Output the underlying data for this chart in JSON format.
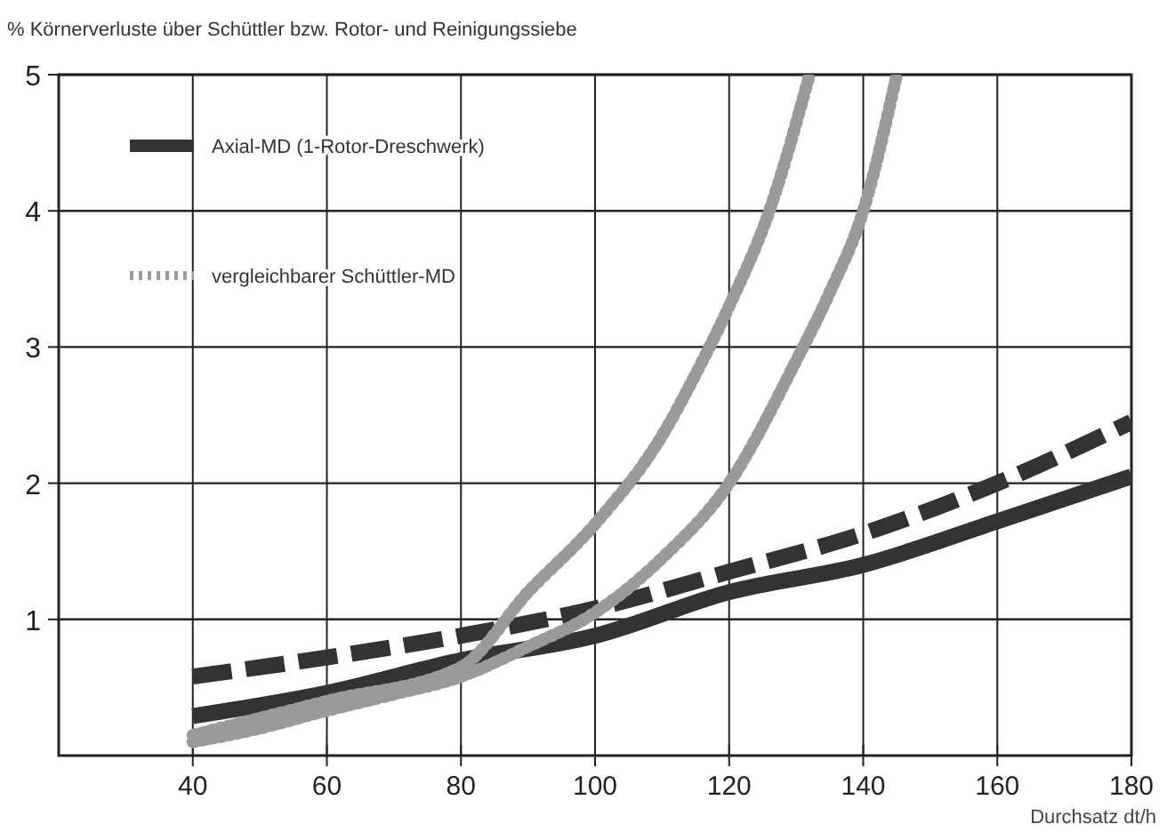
{
  "chart_data": {
    "type": "line",
    "ylabel": "% Körnerverluste über Schüttler bzw. Rotor- und Reinigungssiebe",
    "xlabel": "Durchsatz dt/h",
    "xlim": [
      20,
      180
    ],
    "xticks": [
      40,
      60,
      80,
      100,
      120,
      140,
      160,
      180
    ],
    "ylim": [
      0,
      5
    ],
    "yticks": [
      1,
      2,
      3,
      4,
      5
    ],
    "grid": true,
    "legend": "top left",
    "series": [
      {
        "name": "Axial-MD (1-Rotor-Dreschwerk)",
        "color": "#333333",
        "line_style": "solid",
        "x": [
          40,
          60,
          80,
          100,
          120,
          140,
          160,
          180
        ],
        "values": [
          0.29,
          0.46,
          0.7,
          0.88,
          1.2,
          1.4,
          1.72,
          2.05
        ]
      },
      {
        "color": "#333333",
        "line_style": "dashed",
        "x": [
          40,
          60,
          80,
          100,
          120,
          140,
          160,
          180
        ],
        "values": [
          0.58,
          0.72,
          0.88,
          1.08,
          1.35,
          1.63,
          2.0,
          2.45
        ]
      },
      {
        "name": "vergleichbarer Schüttler-MD",
        "color": "#9a9a9a",
        "line_style": "dotted",
        "x": [
          40,
          50,
          60,
          70,
          80,
          90,
          100,
          110,
          120,
          130,
          135,
          140,
          145
        ],
        "values": [
          0.1,
          0.2,
          0.33,
          0.45,
          0.58,
          0.8,
          1.05,
          1.45,
          2.0,
          2.9,
          3.4,
          4.0,
          5.0
        ]
      },
      {
        "color": "#9a9a9a",
        "line_style": "dotted",
        "x": [
          40,
          60,
          80,
          90,
          100,
          110,
          115,
          120,
          126,
          132
        ],
        "values": [
          0.15,
          0.4,
          0.65,
          1.2,
          1.7,
          2.35,
          2.8,
          3.3,
          4.0,
          5.0
        ]
      }
    ]
  }
}
